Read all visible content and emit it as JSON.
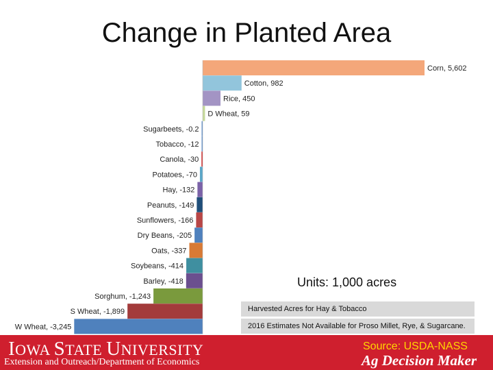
{
  "slide": {
    "title": "Change in Planted Area",
    "units": "Units: 1,000 acres",
    "notes": [
      "Harvested Acres for Hay & Tobacco",
      "2016 Estimates Not Available for Proso Millet, Rye, & Sugarcane."
    ],
    "source": "Source: USDA-NASS"
  },
  "footer": {
    "university": "Iowa State University",
    "department": "Extension and Outreach/Department of Economics",
    "brand": "Ag Decision Maker",
    "color": "#cf1f2e"
  },
  "chart_data": {
    "type": "bar",
    "orientation": "horizontal",
    "categories": [
      "Corn",
      "Cotton",
      "Rice",
      "D Wheat",
      "Sugarbeets",
      "Tobacco",
      "Canola",
      "Potatoes",
      "Hay",
      "Peanuts",
      "Sunflowers",
      "Dry Beans",
      "Oats",
      "Soybeans",
      "Barley",
      "Sorghum",
      "S Wheat",
      "W Wheat"
    ],
    "values": [
      5602,
      982,
      450,
      59,
      -0.2,
      -12,
      -30,
      -70,
      -132,
      -149,
      -166,
      -205,
      -337,
      -414,
      -418,
      -1243,
      -1899,
      -3245
    ],
    "labels": [
      "Corn, 5,602",
      "Cotton, 982",
      "Rice, 450",
      "D Wheat, 59",
      "Sugarbeets, -0.2",
      "Tobacco, -12",
      "Canola, -30",
      "Potatoes, -70",
      "Hay, -132",
      "Peanuts, -149",
      "Sunflowers, -166",
      "Dry Beans, -205",
      "Oats, -337",
      "Soybeans, -414",
      "Barley, -418",
      "Sorghum, -1,243",
      "S Wheat, -1,899",
      "W Wheat, -3,245"
    ],
    "colors": [
      "#f4a77a",
      "#92c5dc",
      "#a394c4",
      "#c5d99a",
      "#5b8cc8",
      "#5b8cc8",
      "#d02c2c",
      "#5ba6c8",
      "#7b62a8",
      "#1f4e79",
      "#b84646",
      "#4f81bd",
      "#d87a35",
      "#3f8fa0",
      "#6b4f8f",
      "#7a9a3d",
      "#a33b3b",
      "#4f81bd"
    ],
    "xlim": [
      -3245,
      5602
    ],
    "title": "",
    "xlabel": "",
    "ylabel": "",
    "grid": false,
    "legend": "none"
  }
}
